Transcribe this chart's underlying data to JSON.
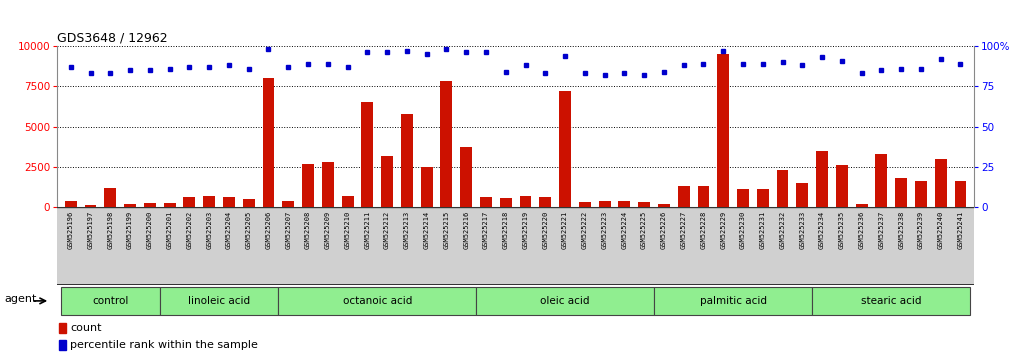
{
  "title": "GDS3648 / 12962",
  "samples": [
    "GSM525196",
    "GSM525197",
    "GSM525198",
    "GSM525199",
    "GSM525200",
    "GSM525201",
    "GSM525202",
    "GSM525203",
    "GSM525204",
    "GSM525205",
    "GSM525206",
    "GSM525207",
    "GSM525208",
    "GSM525209",
    "GSM525210",
    "GSM525211",
    "GSM525212",
    "GSM525213",
    "GSM525214",
    "GSM525215",
    "GSM525216",
    "GSM525217",
    "GSM525218",
    "GSM525219",
    "GSM525220",
    "GSM525221",
    "GSM525222",
    "GSM525223",
    "GSM525224",
    "GSM525225",
    "GSM525226",
    "GSM525227",
    "GSM525228",
    "GSM525229",
    "GSM525230",
    "GSM525231",
    "GSM525232",
    "GSM525233",
    "GSM525234",
    "GSM525235",
    "GSM525236",
    "GSM525237",
    "GSM525238",
    "GSM525239",
    "GSM525240",
    "GSM525241"
  ],
  "counts": [
    400,
    150,
    1200,
    200,
    250,
    250,
    600,
    700,
    600,
    500,
    8000,
    400,
    2700,
    2800,
    700,
    6500,
    3200,
    5800,
    2500,
    7800,
    3700,
    650,
    550,
    700,
    600,
    7200,
    300,
    350,
    400,
    300,
    200,
    1300,
    1300,
    9500,
    1100,
    1100,
    2300,
    1500,
    3500,
    2600,
    200,
    3300,
    1800,
    1600,
    3000,
    1600
  ],
  "percentile_ranks": [
    87,
    83,
    83,
    85,
    85,
    86,
    87,
    87,
    88,
    86,
    98,
    87,
    89,
    89,
    87,
    96,
    96,
    97,
    95,
    98,
    96,
    96,
    84,
    88,
    83,
    94,
    83,
    82,
    83,
    82,
    84,
    88,
    89,
    97,
    89,
    89,
    90,
    88,
    93,
    91,
    83,
    85,
    86,
    86,
    92,
    89
  ],
  "groups": [
    {
      "label": "control",
      "start": 0,
      "end": 5
    },
    {
      "label": "linoleic acid",
      "start": 5,
      "end": 11
    },
    {
      "label": "octanoic acid",
      "start": 11,
      "end": 21
    },
    {
      "label": "oleic acid",
      "start": 21,
      "end": 30
    },
    {
      "label": "palmitic acid",
      "start": 30,
      "end": 38
    },
    {
      "label": "stearic acid",
      "start": 38,
      "end": 46
    }
  ],
  "bar_color": "#cc1100",
  "dot_color": "#0000cc",
  "group_color_light": "#90ee90",
  "group_color_border": "#444444",
  "xlabels_bg": "#d0d0d0",
  "ylim_left": [
    0,
    10000
  ],
  "ylim_right": [
    0,
    100
  ],
  "yticks_left": [
    0,
    2500,
    5000,
    7500,
    10000
  ],
  "yticks_right": [
    0,
    25,
    50,
    75,
    100
  ],
  "ytick_labels_right": [
    "0",
    "25",
    "50",
    "75",
    "100%"
  ],
  "background_color": "#ffffff",
  "label_count": "count",
  "label_pct": "percentile rank within the sample",
  "xlabel_agent": "agent"
}
